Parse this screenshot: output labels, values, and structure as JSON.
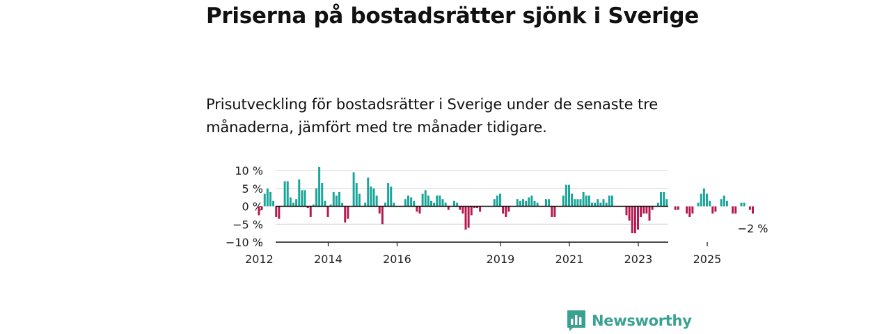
{
  "title": "Priserna på bostadsrätter sjönk i Sverige",
  "subtitle": "Prisutveckling för bostadsrätter i Sverige under de senaste tre månaderna, jämfört med tre månader tidigare.",
  "brand": {
    "name": "Newsworthy",
    "color": "#3aa192",
    "icon": "newsworthy-logo-icon"
  },
  "colors": {
    "positive": "#19a59a",
    "negative": "#b5194f",
    "grid": "#dddddd",
    "axis": "#111111"
  },
  "chart_data": {
    "type": "bar",
    "title": "",
    "xlabel": "",
    "ylabel": "",
    "ylim": [
      -10,
      10
    ],
    "grid": true,
    "y_ticks": [
      {
        "value": 10,
        "label": "10 %"
      },
      {
        "value": 5,
        "label": "5 %"
      },
      {
        "value": 0,
        "label": "0 %"
      },
      {
        "value": -5,
        "label": "−5 %"
      },
      {
        "value": -10,
        "label": "−10 %"
      }
    ],
    "x_ticks": [
      "2012",
      "2014",
      "2016",
      "2019",
      "2021",
      "2023",
      "2025"
    ],
    "start": "2012-01",
    "series": [
      {
        "values": [
          -2.5,
          -1,
          3.5,
          5,
          4,
          1.5,
          -3,
          -3.5,
          0,
          7,
          7,
          2.5,
          1,
          2,
          7.5,
          4.5,
          4.5,
          -0.5,
          -3,
          0.5,
          5,
          11,
          6.5,
          1.5,
          -3,
          0.5,
          4,
          3,
          4,
          1,
          -4.5,
          -3.5,
          0,
          9.5,
          6.5,
          3.5,
          0,
          1,
          8,
          5.5,
          5,
          3,
          -2,
          -5,
          1,
          6.5,
          5.5,
          1,
          0,
          0,
          0,
          2,
          3,
          2.5,
          1.5,
          -1.5,
          -2,
          3.5,
          4.5,
          3,
          1.5,
          1,
          3,
          3,
          2,
          1,
          -1,
          0,
          1.5,
          1,
          -1,
          -2,
          -6.5,
          -6,
          -2.5,
          -0.5,
          -0.5,
          -1.5,
          0,
          0,
          0,
          0,
          2,
          3,
          3.5,
          -2,
          -3,
          -1.5,
          0,
          0,
          2,
          1.5,
          2,
          1.5,
          2.5,
          3,
          1.5,
          1,
          0,
          0,
          2,
          2,
          -3,
          -3,
          0,
          0,
          3,
          6,
          6,
          3.5,
          2,
          2,
          2,
          4,
          3,
          3,
          1,
          1,
          2,
          1,
          2,
          1,
          3,
          3,
          0,
          0,
          0,
          0,
          -2.5,
          -4,
          -7.5,
          -7.5,
          -6.5,
          -3,
          -2,
          -2,
          -4,
          -1,
          0,
          1,
          4,
          4,
          2,
          0,
          0,
          -1,
          -1,
          0,
          0,
          -2,
          -3,
          -2,
          0,
          1,
          3.5,
          5,
          3.5,
          1.5,
          -2,
          -1.5,
          0,
          2,
          3,
          1.5,
          0,
          -2,
          -2,
          0,
          1,
          1,
          0,
          -1,
          -2
        ],
        "latest_label": "−2 %"
      }
    ]
  }
}
